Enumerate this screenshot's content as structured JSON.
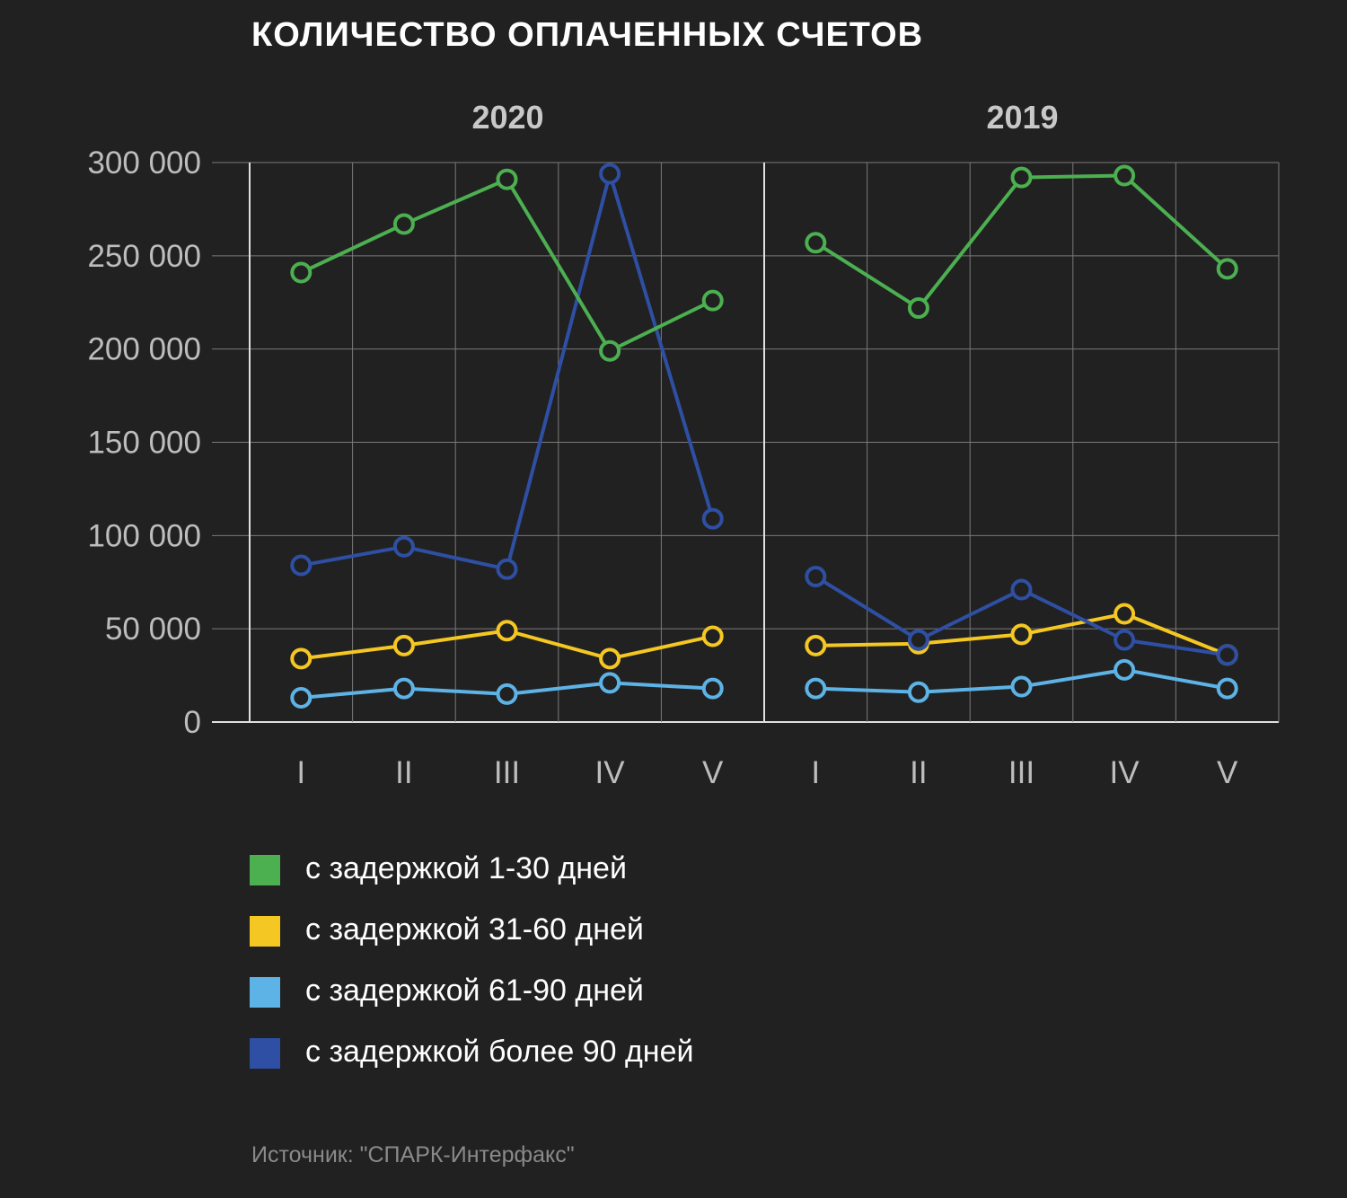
{
  "title": "КОЛИЧЕСТВО ОПЛАЧЕННЫХ СЧЕТОВ",
  "source": "Источник: \"СПАРК-Интерфакс\"",
  "colors": {
    "background": "#212121",
    "grid": "#7a7a7a",
    "axis": "#e0e0e0",
    "tick_text": "#bdbdbd",
    "panel_title": "#c8c8c8"
  },
  "chart_data": {
    "type": "line",
    "title": "КОЛИЧЕСТВО ОПЛАЧЕННЫХ СЧЕТОВ",
    "ylim": [
      0,
      300000
    ],
    "yticks": [
      0,
      50000,
      100000,
      150000,
      200000,
      250000,
      300000
    ],
    "ytick_labels": [
      "0",
      "50 000",
      "100 000",
      "150 000",
      "200 000",
      "250 000",
      "300 000"
    ],
    "grid": true,
    "legend_position": "bottom",
    "categories": [
      "I",
      "II",
      "III",
      "IV",
      "V"
    ],
    "panels": [
      {
        "name": "2020",
        "series": [
          {
            "name": "с задержкой 1-30 дней",
            "color": "#4caf50",
            "values": [
              241000,
              267000,
              291000,
              199000,
              226000
            ]
          },
          {
            "name": "с задержкой 31-60 дней",
            "color": "#f5c722",
            "values": [
              34000,
              41000,
              49000,
              34000,
              46000
            ]
          },
          {
            "name": "с задержкой 61-90 дней",
            "color": "#5db3e6",
            "values": [
              13000,
              18000,
              15000,
              21000,
              18000
            ]
          },
          {
            "name": "с задержкой более 90 дней",
            "color": "#2e4fa3",
            "values": [
              84000,
              94000,
              82000,
              294000,
              109000
            ]
          }
        ]
      },
      {
        "name": "2019",
        "series": [
          {
            "name": "с задержкой 1-30 дней",
            "color": "#4caf50",
            "values": [
              257000,
              222000,
              292000,
              293000,
              243000
            ]
          },
          {
            "name": "с задержкой 31-60 дней",
            "color": "#f5c722",
            "values": [
              41000,
              42000,
              47000,
              58000,
              36000
            ]
          },
          {
            "name": "с задержкой 61-90 дней",
            "color": "#5db3e6",
            "values": [
              18000,
              16000,
              19000,
              28000,
              18000
            ]
          },
          {
            "name": "с задержкой более 90 дней",
            "color": "#2e4fa3",
            "values": [
              78000,
              44000,
              71000,
              44000,
              36000
            ]
          }
        ]
      }
    ]
  },
  "legend": [
    {
      "label": "с задержкой 1-30 дней",
      "color": "#4caf50"
    },
    {
      "label": "с задержкой 31-60 дней",
      "color": "#f5c722"
    },
    {
      "label": "с задержкой 61-90 дней",
      "color": "#5db3e6"
    },
    {
      "label": "с задержкой более 90 дней",
      "color": "#2e4fa3"
    }
  ]
}
